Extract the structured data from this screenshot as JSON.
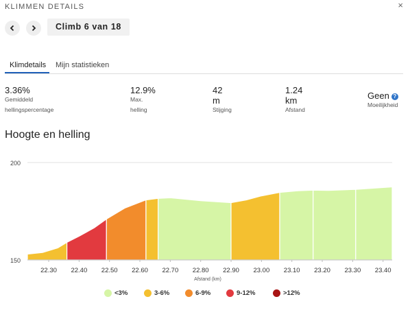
{
  "header": {
    "title": "KLIMMEN DETAILS",
    "close_icon": "close-icon"
  },
  "navigator": {
    "prev_icon": "chevron-left-icon",
    "next_icon": "chevron-right-icon",
    "label": "Climb 6 van 18"
  },
  "tabs": [
    {
      "label": "Klimdetails",
      "active": true
    },
    {
      "label": "Mijn statistieken",
      "active": false
    }
  ],
  "stats": {
    "gradient": {
      "value": "3.36%",
      "label_line1": "Gemiddeld",
      "label_line2": "hellingspercentage"
    },
    "max_gradient": {
      "value": "12.9%",
      "label_line1": "Max.",
      "label_line2": "helling"
    },
    "ascent": {
      "value": "42",
      "unit": "m",
      "label": "Stijging"
    },
    "distance": {
      "value": "1.24",
      "unit": "km",
      "label": "Afstand"
    },
    "difficulty": {
      "value": "Geen",
      "label": "Moeilijkheid",
      "info_icon": "info-icon"
    }
  },
  "section_title": "Hoogte en helling",
  "chart_data": {
    "type": "area",
    "xlabel": "Afstand (km)",
    "ylabel": "",
    "xlim": [
      22.23,
      23.43
    ],
    "ylim": [
      150,
      200
    ],
    "x_ticks": [
      "22.30",
      "22.40",
      "22.50",
      "22.60",
      "22.70",
      "22.80",
      "22.90",
      "23.00",
      "23.10",
      "23.20",
      "23.30",
      "23.40"
    ],
    "y_ticks": [
      "200",
      "150"
    ],
    "profile": [
      [
        22.23,
        153.0
      ],
      [
        22.28,
        153.8
      ],
      [
        22.33,
        156.2
      ],
      [
        22.36,
        159.0
      ],
      [
        22.4,
        162.2
      ],
      [
        22.45,
        166.5
      ],
      [
        22.49,
        171.0
      ],
      [
        22.55,
        176.6
      ],
      [
        22.62,
        180.8
      ],
      [
        22.66,
        181.6
      ],
      [
        22.7,
        181.9
      ],
      [
        22.8,
        180.4
      ],
      [
        22.9,
        179.4
      ],
      [
        22.95,
        180.8
      ],
      [
        23.0,
        182.9
      ],
      [
        23.06,
        184.7
      ],
      [
        23.12,
        185.5
      ],
      [
        23.17,
        185.8
      ],
      [
        23.22,
        185.7
      ],
      [
        23.31,
        186.2
      ],
      [
        23.43,
        187.5
      ]
    ],
    "segments": [
      {
        "start": 22.23,
        "end": 22.36,
        "category": "3-6%"
      },
      {
        "start": 22.36,
        "end": 22.49,
        "category": "9-12%"
      },
      {
        "start": 22.49,
        "end": 22.62,
        "category": "6-9%"
      },
      {
        "start": 22.62,
        "end": 22.66,
        "category": "3-6%"
      },
      {
        "start": 22.66,
        "end": 22.9,
        "category": "<3%"
      },
      {
        "start": 22.9,
        "end": 23.06,
        "category": "3-6%"
      },
      {
        "start": 23.06,
        "end": 23.17,
        "category": "<3%"
      },
      {
        "start": 23.17,
        "end": 23.31,
        "category": "<3%"
      },
      {
        "start": 23.31,
        "end": 23.43,
        "category": "<3%"
      }
    ],
    "legend": [
      {
        "label": "<3%",
        "color": "#d6f5a6"
      },
      {
        "label": "3-6%",
        "color": "#f4c030"
      },
      {
        "label": "6-9%",
        "color": "#f28c2c"
      },
      {
        "label": "9-12%",
        "color": "#e23a3f"
      },
      {
        "label": ">12%",
        "color": "#a81414"
      }
    ],
    "grid": "horizontal",
    "legend_position": "bottom"
  }
}
